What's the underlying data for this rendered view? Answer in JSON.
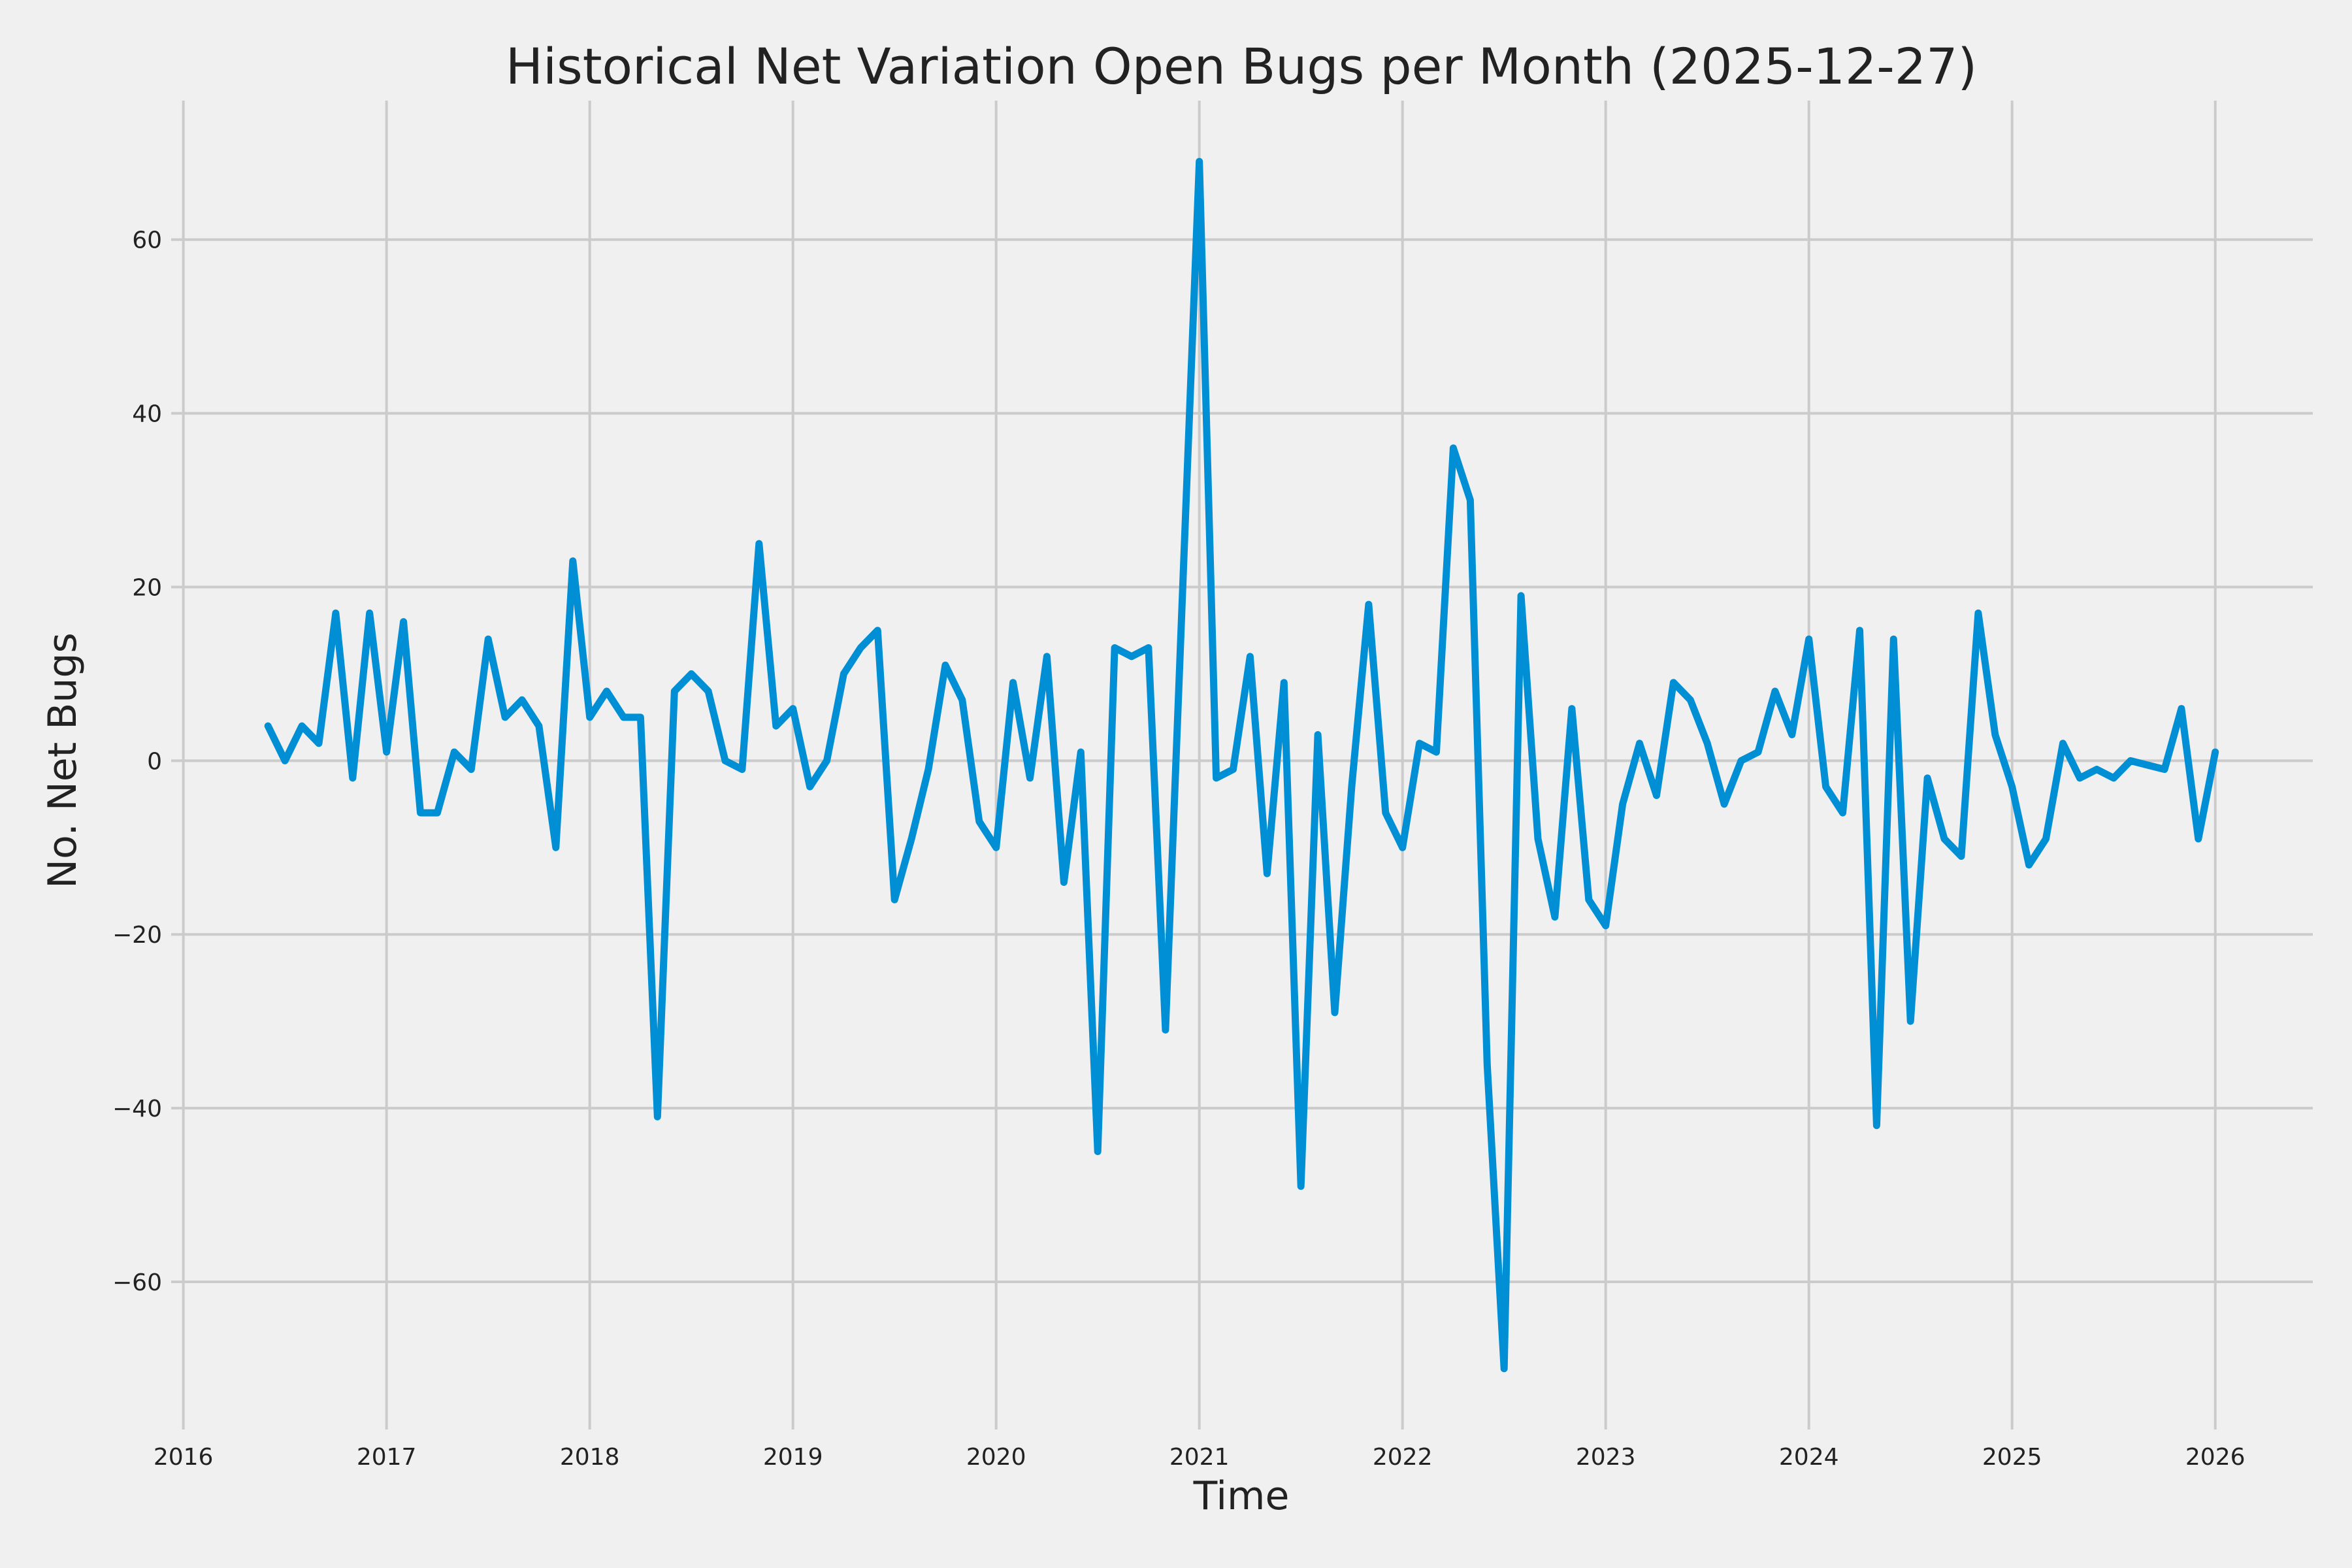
{
  "chart_data": {
    "type": "line",
    "title": "Historical Net Variation Open Bugs per Month (2025-12-27)",
    "xlabel": "Time",
    "ylabel": "No. Net Bugs",
    "xlim": [
      2015.94,
      2026.48
    ],
    "ylim": [
      -77,
      76
    ],
    "grid": true,
    "line_color": "#008fd5",
    "background_color": "#f0f0f0",
    "x_ticks": [
      "2016",
      "2017",
      "2018",
      "2019",
      "2020",
      "2021",
      "2022",
      "2023",
      "2024",
      "2025",
      "2026"
    ],
    "y_ticks": [
      "60",
      "40",
      "20",
      "0",
      "−20",
      "−40",
      "−60"
    ],
    "y_tick_values": [
      60,
      40,
      20,
      0,
      -20,
      -40,
      -60
    ],
    "x": [
      "2016-06",
      "2016-07",
      "2016-08",
      "2016-09",
      "2016-10",
      "2016-11",
      "2016-12",
      "2017-01",
      "2017-02",
      "2017-03",
      "2017-04",
      "2017-05",
      "2017-06",
      "2017-07",
      "2017-08",
      "2017-09",
      "2017-10",
      "2017-11",
      "2017-12",
      "2018-01",
      "2018-02",
      "2018-03",
      "2018-04",
      "2018-05",
      "2018-06",
      "2018-07",
      "2018-08",
      "2018-09",
      "2018-10",
      "2018-11",
      "2018-12",
      "2019-01",
      "2019-02",
      "2019-03",
      "2019-04",
      "2019-05",
      "2019-06",
      "2019-07",
      "2019-08",
      "2019-09",
      "2019-10",
      "2019-11",
      "2019-12",
      "2020-01",
      "2020-02",
      "2020-03",
      "2020-04",
      "2020-05",
      "2020-06",
      "2020-07",
      "2020-08",
      "2020-09",
      "2020-10",
      "2020-11",
      "2020-12",
      "2021-01",
      "2021-02",
      "2021-03",
      "2021-04",
      "2021-05",
      "2021-06",
      "2021-07",
      "2021-08",
      "2021-09",
      "2021-10",
      "2021-11",
      "2021-12",
      "2022-01",
      "2022-02",
      "2022-03",
      "2022-04",
      "2022-05",
      "2022-06",
      "2022-07",
      "2022-08",
      "2022-09",
      "2022-10",
      "2022-11",
      "2022-12",
      "2023-01",
      "2023-02",
      "2023-03",
      "2023-04",
      "2023-05",
      "2023-06",
      "2023-07",
      "2023-08",
      "2023-09",
      "2023-10",
      "2023-11",
      "2023-12",
      "2024-01",
      "2024-02",
      "2024-03",
      "2024-04",
      "2024-05",
      "2024-06",
      "2024-07",
      "2024-08",
      "2024-09",
      "2024-10",
      "2024-11",
      "2024-12",
      "2025-01",
      "2025-02",
      "2025-03",
      "2025-04",
      "2025-05",
      "2025-06",
      "2025-07",
      "2025-08",
      "2025-09",
      "2025-10",
      "2025-11",
      "2025-12",
      "2026-01"
    ],
    "series": [
      {
        "values": [
          4,
          0,
          4,
          2,
          17,
          -2,
          17,
          1,
          16,
          -6,
          -6,
          1,
          -1,
          14,
          5,
          7,
          4,
          -10,
          23,
          5,
          8,
          5,
          5,
          -41,
          8,
          10,
          8,
          0,
          -1,
          25,
          4,
          6,
          -3,
          0,
          10,
          13,
          15,
          -16,
          -9,
          -1,
          11,
          7,
          -7,
          -10,
          9,
          -2,
          12,
          -14,
          1,
          -45,
          13,
          12,
          13,
          -31,
          19,
          69,
          -2,
          -1,
          12,
          -13,
          9,
          -49,
          3,
          -29,
          -3,
          18,
          -6,
          -10,
          2,
          1,
          36,
          30,
          -35,
          -70,
          19,
          -9,
          -18,
          6,
          -16,
          -19,
          -5,
          2,
          -4,
          9,
          7,
          2,
          -5,
          0,
          1,
          8,
          3,
          14,
          -3,
          -6,
          15,
          -42,
          14,
          -30,
          -2,
          -9,
          -11,
          17,
          3,
          -3,
          -12,
          -9,
          2,
          -2,
          -1,
          -2,
          0,
          -0.5,
          -1,
          6,
          -9,
          1
        ]
      }
    ]
  }
}
